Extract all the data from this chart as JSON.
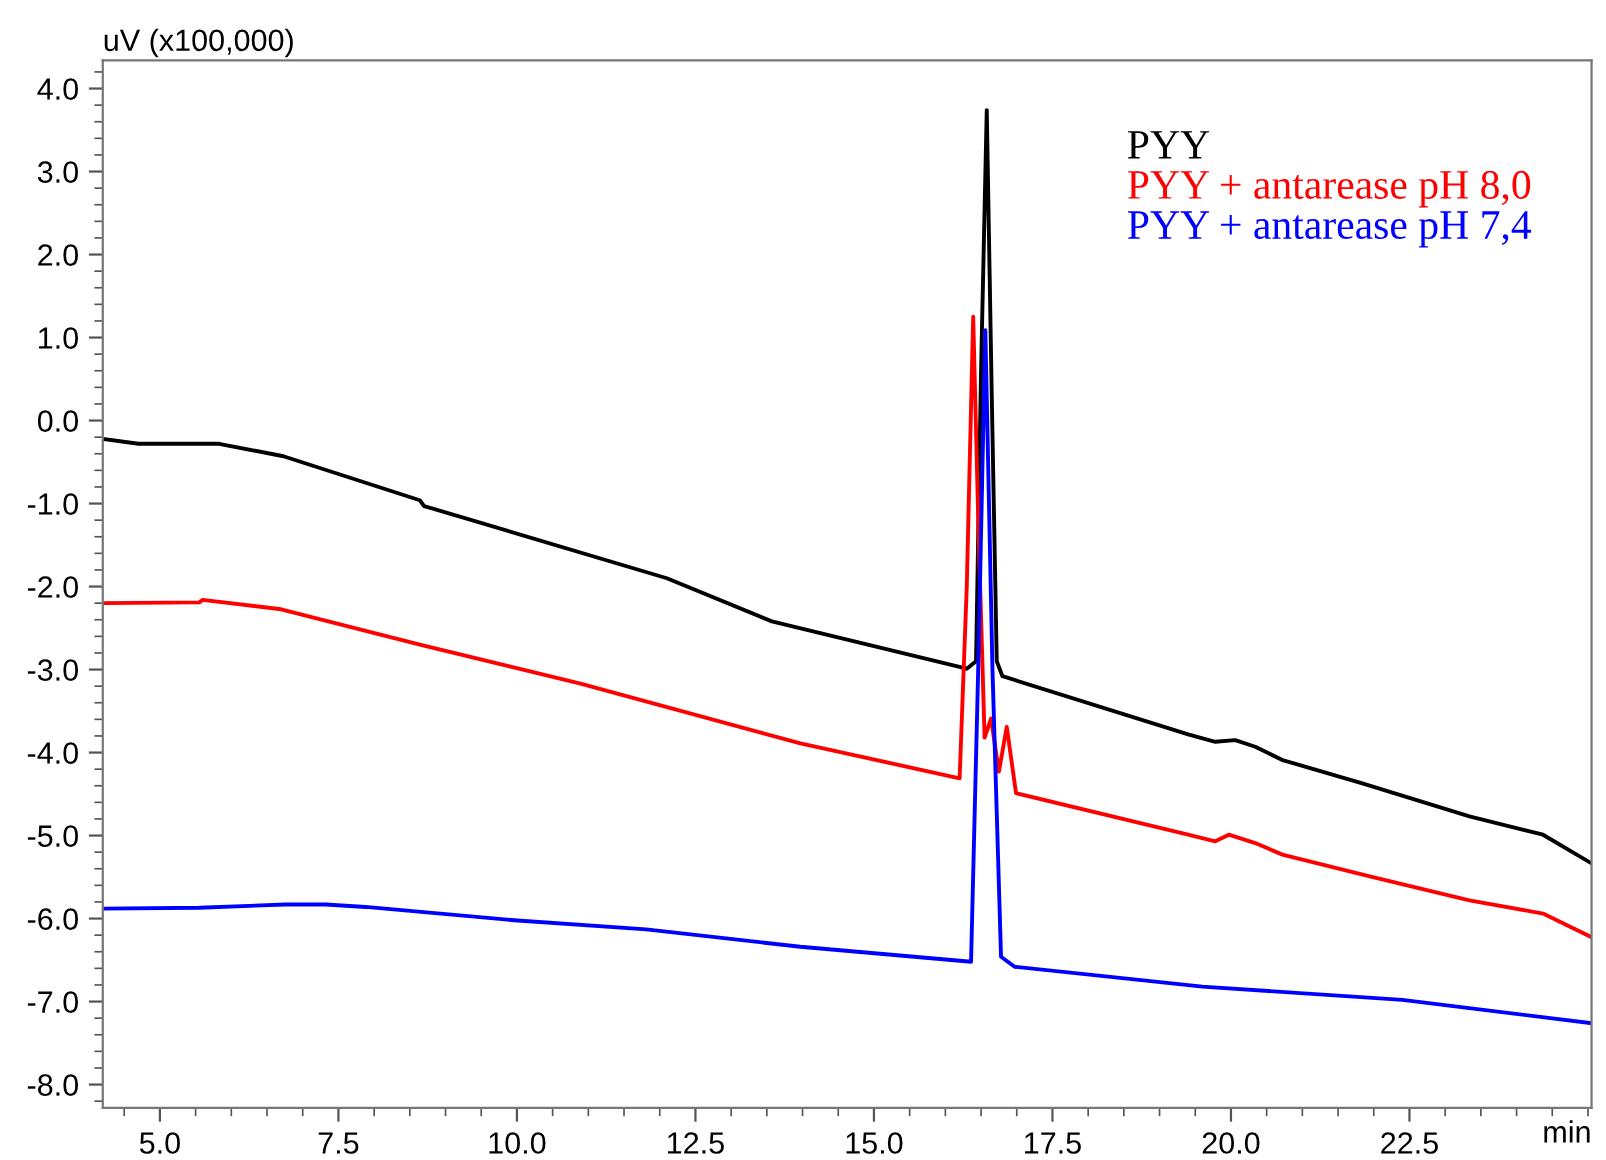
{
  "chart_data": {
    "type": "line",
    "ylabel": "uV (x100,000)",
    "xlabel": "min",
    "xlim": [
      4.2,
      25.05
    ],
    "xticks": [
      {
        "value": 5,
        "label": "5.0"
      },
      {
        "value": 7.5,
        "label": "7.5"
      },
      {
        "value": 10,
        "label": "10.0"
      },
      {
        "value": 12.5,
        "label": "12.5"
      },
      {
        "value": 15,
        "label": "15.0"
      },
      {
        "value": 17.5,
        "label": "17.5"
      },
      {
        "value": 20,
        "label": "20.0"
      },
      {
        "value": 22.5,
        "label": "22.5"
      }
    ],
    "ylim": [
      -8.28,
      4.34
    ],
    "yticks": [
      {
        "value": -8,
        "label": "-8.0"
      },
      {
        "value": -7,
        "label": "-7.0"
      },
      {
        "value": -6,
        "label": "-6.0"
      },
      {
        "value": -5,
        "label": "-5.0"
      },
      {
        "value": -4,
        "label": "-4.0"
      },
      {
        "value": -3,
        "label": "-3.0"
      },
      {
        "value": -2,
        "label": "-2.0"
      },
      {
        "value": -1,
        "label": "-1.0"
      },
      {
        "value": 0,
        "label": "0.0"
      },
      {
        "value": 1,
        "label": "1.0"
      },
      {
        "value": 2,
        "label": "2.0"
      },
      {
        "value": 3,
        "label": "3.0"
      },
      {
        "value": 4,
        "label": "4.0"
      }
    ],
    "grid": false,
    "legend": "top right",
    "marker": "none",
    "line_style": "solid",
    "series": [
      {
        "name": "PYY",
        "color": "#000000",
        "x": [
          4.2,
          4.7,
          5.83,
          6.73,
          8.64,
          8.7,
          12.1,
          13.57,
          16.3,
          16.43,
          16.5,
          16.58,
          16.65,
          16.72,
          16.8,
          19.4,
          19.78,
          20.06,
          20.34,
          20.72,
          21.84,
          23.34,
          24.37,
          25.04
        ],
        "values": [
          -0.22,
          -0.28,
          -0.28,
          -0.43,
          -0.96,
          -1.03,
          -1.9,
          -2.42,
          -2.99,
          -2.9,
          0.6,
          3.74,
          0.3,
          -2.9,
          -3.08,
          -3.78,
          -3.87,
          -3.85,
          -3.93,
          -4.09,
          -4.37,
          -4.77,
          -4.99,
          -5.33
        ]
      },
      {
        "name": "PYY + antarease pH 8,0",
        "color": "#ff0000",
        "x": [
          4.2,
          5.55,
          5.6,
          6.67,
          8.64,
          10.89,
          13.97,
          16.2,
          16.3,
          16.39,
          16.47,
          16.55,
          16.64,
          16.75,
          16.86,
          16.99,
          19.4,
          19.78,
          19.97,
          20.34,
          20.72,
          21.93,
          23.34,
          24.37,
          25.04
        ],
        "values": [
          -2.2,
          -2.19,
          -2.16,
          -2.27,
          -2.7,
          -3.17,
          -3.89,
          -4.31,
          -2.0,
          1.25,
          -1.5,
          -3.82,
          -3.59,
          -4.23,
          -3.69,
          -4.49,
          -4.99,
          -5.07,
          -4.99,
          -5.09,
          -5.23,
          -5.49,
          -5.78,
          -5.94,
          -6.22
        ]
      },
      {
        "name": "PYY + antarease pH 7,4",
        "color": "#0000ff",
        "x": [
          4.2,
          5.55,
          6.76,
          7.32,
          7.88,
          9.96,
          11.81,
          13.97,
          16.36,
          16.46,
          16.56,
          16.66,
          16.78,
          16.97,
          19.6,
          22.4,
          25.04
        ],
        "values": [
          -5.88,
          -5.87,
          -5.83,
          -5.83,
          -5.86,
          -6.02,
          -6.13,
          -6.34,
          -6.52,
          -3.0,
          1.09,
          -3.0,
          -6.46,
          -6.58,
          -6.82,
          -6.98,
          -7.26
        ]
      }
    ]
  }
}
